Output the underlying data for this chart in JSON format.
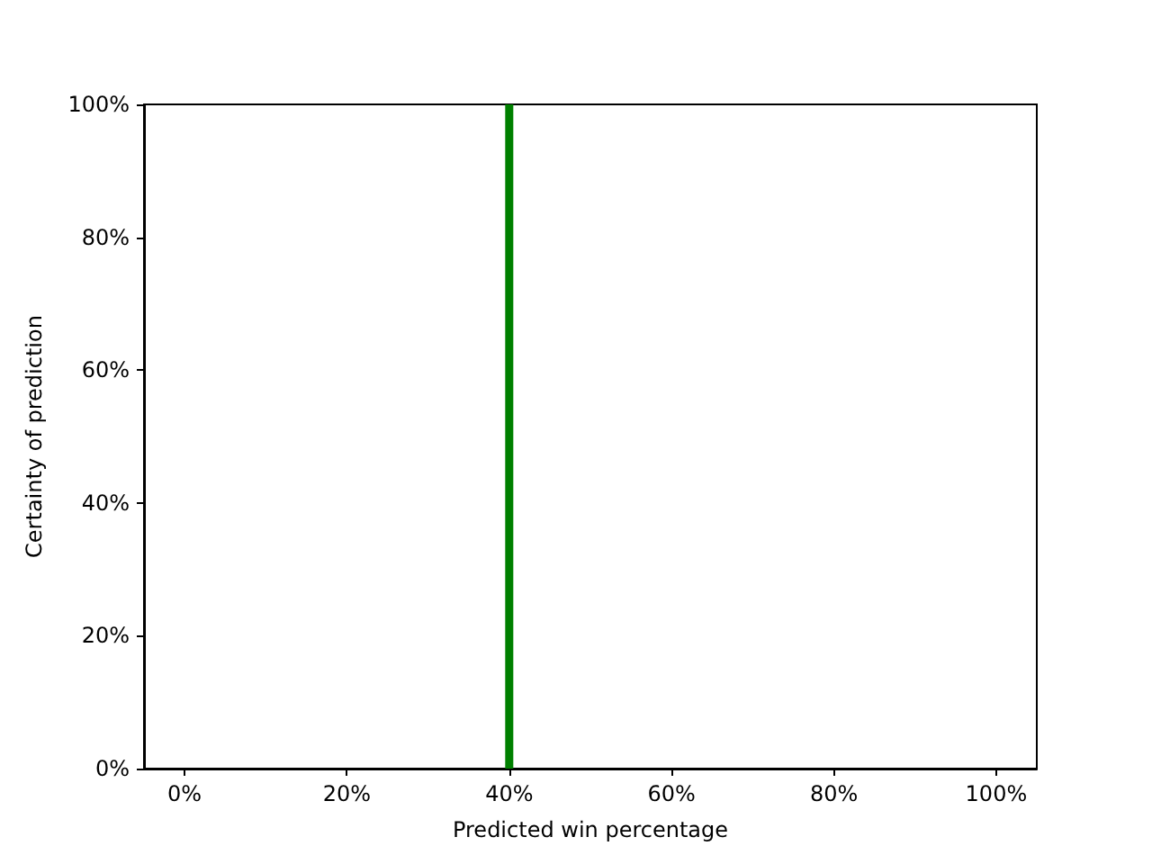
{
  "chart_data": {
    "type": "histogram",
    "xlabel": "Predicted win percentage",
    "ylabel": "Certainty of prediction",
    "bins": [
      39.5,
      40.5
    ],
    "values": [
      100
    ],
    "color": "#008000",
    "xlim": [
      -5,
      105
    ],
    "xticks": [
      {
        "value": 0,
        "label": "0%"
      },
      {
        "value": 20,
        "label": "20%"
      },
      {
        "value": 40,
        "label": "40%"
      },
      {
        "value": 60,
        "label": "60%"
      },
      {
        "value": 80,
        "label": "80%"
      },
      {
        "value": 100,
        "label": "100%"
      }
    ],
    "ylim": [
      0,
      100
    ],
    "yticks": [
      {
        "value": 0,
        "label": "0%"
      },
      {
        "value": 20,
        "label": "20%"
      },
      {
        "value": 40,
        "label": "40%"
      },
      {
        "value": 60,
        "label": "60%"
      },
      {
        "value": 80,
        "label": "80%"
      },
      {
        "value": 100,
        "label": "100%"
      }
    ],
    "grid": false
  }
}
